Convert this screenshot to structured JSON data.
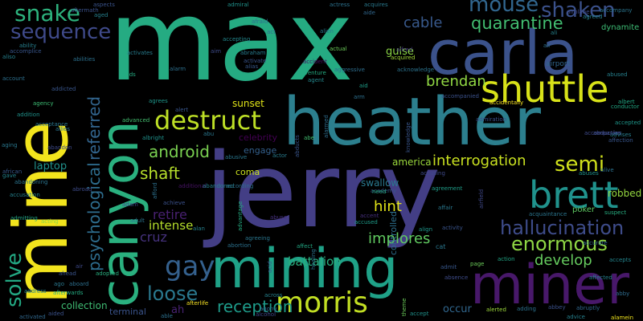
{
  "words": [
    {
      "text": "max",
      "color": "#25ab82"
    },
    {
      "text": "jerry",
      "color": "#433e85"
    },
    {
      "text": "heather",
      "color": "#2c7f8e"
    },
    {
      "text": "mine",
      "color": "#f2e41d"
    },
    {
      "text": "mining",
      "color": "#1fa187"
    },
    {
      "text": "carla",
      "color": "#3b528b"
    },
    {
      "text": "canyon",
      "color": "#2ab07f"
    },
    {
      "text": "miner",
      "color": "#48186a"
    },
    {
      "text": "shuttle",
      "color": "#d8e219"
    },
    {
      "text": "brett",
      "color": "#20928c"
    },
    {
      "text": "morris",
      "color": "#c2df23"
    },
    {
      "text": "destruct",
      "color": "#bddf26"
    },
    {
      "text": "psychological",
      "color": "#2e6d8e"
    },
    {
      "text": "referred",
      "color": "#32658e"
    },
    {
      "text": "snake",
      "color": "#2db27d"
    },
    {
      "text": "sequence",
      "color": "#3f4a8a"
    },
    {
      "text": "mouse",
      "color": "#31668e"
    },
    {
      "text": "shaken",
      "color": "#3b518b"
    },
    {
      "text": "quarantine",
      "color": "#42be71"
    },
    {
      "text": "cable",
      "color": "#38598c"
    },
    {
      "text": "hallucination",
      "color": "#3e4c8a"
    },
    {
      "text": "enormous",
      "color": "#8fd744"
    },
    {
      "text": "semi",
      "color": "#d0e11c"
    },
    {
      "text": "gay",
      "color": "#34608d"
    },
    {
      "text": "solve",
      "color": "#23a983"
    },
    {
      "text": "loose",
      "color": "#2a788e"
    },
    {
      "text": "android",
      "color": "#7ad151"
    },
    {
      "text": "shaft",
      "color": "#b5de2b"
    },
    {
      "text": "reception",
      "color": "#1e9b8a"
    },
    {
      "text": "develop",
      "color": "#65cb5e"
    },
    {
      "text": "brendan",
      "color": "#90d743"
    },
    {
      "text": "interrogation",
      "color": "#c8e020"
    },
    {
      "text": "implores",
      "color": "#60ca60"
    },
    {
      "text": "hint",
      "color": "#e2e418"
    },
    {
      "text": "battalion",
      "color": "#29af7f"
    },
    {
      "text": "retire",
      "color": "#482071"
    },
    {
      "text": "intense",
      "color": "#b5de2b"
    },
    {
      "text": "cruz",
      "color": "#46327e"
    },
    {
      "text": "laptop",
      "color": "#21918c"
    },
    {
      "text": "collection",
      "color": "#3fbc73"
    },
    {
      "text": "guise",
      "color": "#8bd646"
    },
    {
      "text": "occur",
      "color": "#31678e"
    },
    {
      "text": "sunset",
      "color": "#dfe318"
    },
    {
      "text": "robbed",
      "color": "#95d840"
    },
    {
      "text": "america",
      "color": "#9bd93c"
    },
    {
      "text": "swallow",
      "color": "#2a788e"
    },
    {
      "text": "engage",
      "color": "#34608d"
    },
    {
      "text": "coma",
      "color": "#cae11f"
    },
    {
      "text": "controlled",
      "color": "#2e6f8e"
    },
    {
      "text": "ah",
      "color": "#482374"
    },
    {
      "text": "terminal",
      "color": "#3a538b"
    },
    {
      "text": "poker",
      "color": "#5ec962"
    },
    {
      "text": "celebrity",
      "color": "#440154"
    },
    {
      "text": "dynamite",
      "color": "#3dbc74"
    },
    {
      "text": "conductor",
      "color": "#22a884"
    },
    {
      "text": "airport",
      "color": "#31678e"
    },
    {
      "text": "abuse",
      "color": "#46307e"
    },
    {
      "text": "accused",
      "color": "#1e9c89"
    },
    {
      "text": "activity",
      "color": "#3a548c"
    },
    {
      "text": "alamein",
      "color": "#f1e51d"
    },
    {
      "text": "abby",
      "color": "#2f6c8e"
    },
    {
      "text": "admit",
      "color": "#38588c"
    },
    {
      "text": "accepts",
      "color": "#24868e"
    },
    {
      "text": "action",
      "color": "#21a585"
    },
    {
      "text": "alerted",
      "color": "#9dd93b"
    },
    {
      "text": "abbey",
      "color": "#3b518b"
    },
    {
      "text": "abruptly",
      "color": "#31688e"
    },
    {
      "text": "advice",
      "color": "#26818e"
    },
    {
      "text": "adding",
      "color": "#2c718e"
    },
    {
      "text": "page",
      "color": "#6ccd5a"
    },
    {
      "text": "suspect",
      "color": "#28ae80"
    },
    {
      "text": "acquaintance",
      "color": "#2b758e"
    },
    {
      "text": "accompanies",
      "color": "#3e4989"
    },
    {
      "text": "accepted",
      "color": "#1f978b"
    },
    {
      "text": "affection",
      "color": "#39568c"
    },
    {
      "text": "advises",
      "color": "#277f8e"
    },
    {
      "text": "abduction",
      "color": "#3d4e8a"
    },
    {
      "text": "aboard",
      "color": "#2d708e"
    },
    {
      "text": "address",
      "color": "#25848e"
    },
    {
      "text": "afterwards",
      "color": "#25ac82"
    },
    {
      "text": "acting",
      "color": "#8ed645"
    },
    {
      "text": "admitting",
      "color": "#20a386"
    },
    {
      "text": "abandoning",
      "color": "#2b748e"
    },
    {
      "text": "abandon",
      "color": "#3e4a89"
    },
    {
      "text": "advanced",
      "color": "#44bf70"
    },
    {
      "text": "albright",
      "color": "#20928c"
    },
    {
      "text": "additional",
      "color": "#471365"
    },
    {
      "text": "abandoned",
      "color": "#26828e"
    },
    {
      "text": "according",
      "color": "#2d718e"
    },
    {
      "text": "abusive",
      "color": "#2a778e"
    },
    {
      "text": "academy",
      "color": "#39568c"
    },
    {
      "text": "agreement",
      "color": "#1f9e89"
    },
    {
      "text": "acquired",
      "color": "#a2da37"
    },
    {
      "text": "activate",
      "color": "#3a548c"
    },
    {
      "text": "accident",
      "color": "#471164"
    },
    {
      "text": "aggressive",
      "color": "#2e6e8e"
    },
    {
      "text": "adventure",
      "color": "#25ac82"
    },
    {
      "text": "acknowledge",
      "color": "#2c738e"
    },
    {
      "text": "accompanied",
      "color": "#3b518b"
    },
    {
      "text": "adopted",
      "color": "#29af7f"
    },
    {
      "text": "afterlife",
      "color": "#fde725"
    },
    {
      "text": "agony",
      "color": "#31678e"
    },
    {
      "text": "alcohol",
      "color": "#3f4889"
    },
    {
      "text": "agreeing",
      "color": "#2a768e"
    },
    {
      "text": "abortion",
      "color": "#2c718e"
    },
    {
      "text": "affect",
      "color": "#22a884"
    },
    {
      "text": "accent",
      "color": "#46307e"
    },
    {
      "text": "accepting",
      "color": "#23898e"
    },
    {
      "text": "aspects",
      "color": "#3a548c"
    },
    {
      "text": "accomplice",
      "color": "#39568c"
    },
    {
      "text": "ability",
      "color": "#277f8e"
    },
    {
      "text": "aftermath",
      "color": "#3b528b"
    },
    {
      "text": "aged",
      "color": "#26818e"
    },
    {
      "text": "actress",
      "color": "#2c718e"
    },
    {
      "text": "admiral",
      "color": "#20928c"
    },
    {
      "text": "airplane",
      "color": "#3e4a89"
    },
    {
      "text": "accompany",
      "color": "#2b758e"
    },
    {
      "text": "agreed",
      "color": "#26828e"
    },
    {
      "text": "alfred",
      "color": "#453781"
    },
    {
      "text": "acquires",
      "color": "#29798e"
    },
    {
      "text": "alert",
      "color": "#39568c"
    },
    {
      "text": "albert",
      "color": "#22a884"
    },
    {
      "text": "account",
      "color": "#2d708e"
    },
    {
      "text": "agency",
      "color": "#3dbc74"
    },
    {
      "text": "agrees",
      "color": "#1f978b"
    },
    {
      "text": "aging",
      "color": "#2a778e"
    },
    {
      "text": "african",
      "color": "#38588c"
    },
    {
      "text": "gave",
      "color": "#25848e"
    },
    {
      "text": "alarm",
      "color": "#2d708e"
    },
    {
      "text": "aim",
      "color": "#3e4c8a"
    },
    {
      "text": "actual",
      "color": "#6ccd5a"
    },
    {
      "text": "act",
      "color": "#31688e"
    },
    {
      "text": "afraid",
      "color": "#2f6c8e"
    },
    {
      "text": "alias",
      "color": "#38598c"
    },
    {
      "text": "agent",
      "color": "#23898e"
    },
    {
      "text": "aid",
      "color": "#1f9e89"
    },
    {
      "text": "abe",
      "color": "#42be71"
    },
    {
      "text": "abu",
      "color": "#2a778e"
    },
    {
      "text": "actor",
      "color": "#287c8e"
    },
    {
      "text": "adam",
      "color": "#3e4989"
    },
    {
      "text": "adult",
      "color": "#2b748e"
    },
    {
      "text": "alan",
      "color": "#26818e"
    },
    {
      "text": "achieve",
      "color": "#3b518b"
    },
    {
      "text": "afford",
      "color": "#2d708e"
    },
    {
      "text": "need",
      "color": "#25ac82"
    },
    {
      "text": "align",
      "color": "#1f978b"
    },
    {
      "text": "cat",
      "color": "#2a778e"
    },
    {
      "text": "absence",
      "color": "#3e4c8a"
    },
    {
      "text": "healing",
      "color": "#2b758e"
    },
    {
      "text": "theme",
      "color": "#6ccd5a"
    },
    {
      "text": "accept",
      "color": "#20928c"
    },
    {
      "text": "across",
      "color": "#26828e"
    },
    {
      "text": "acid",
      "color": "#3a548c"
    },
    {
      "text": "aide",
      "color": "#31678e"
    },
    {
      "text": "alien",
      "color": "#29798e"
    },
    {
      "text": "abducts",
      "color": "#39568c"
    },
    {
      "text": "alarmed",
      "color": "#2e6e8e"
    },
    {
      "text": "advantage",
      "color": "#25ac82"
    },
    {
      "text": "airfield",
      "color": "#3f4889"
    },
    {
      "text": "accidentally",
      "color": "#fde725"
    },
    {
      "text": "alive",
      "color": "#2c718e"
    },
    {
      "text": "aliso",
      "color": "#26818e"
    },
    {
      "text": "ago",
      "color": "#2a788e"
    },
    {
      "text": "ali",
      "color": "#26828e"
    },
    {
      "text": "able",
      "color": "#2c718e"
    },
    {
      "text": "aided",
      "color": "#3b528b"
    },
    {
      "text": "activated",
      "color": "#31688e"
    },
    {
      "text": "abraham",
      "color": "#287c8e"
    },
    {
      "text": "accusing",
      "color": "#3e4a89"
    },
    {
      "text": "abuses",
      "color": "#20928c"
    },
    {
      "text": "allies",
      "color": "#2b758e"
    },
    {
      "text": "addicted",
      "color": "#39568c"
    },
    {
      "text": "abused",
      "color": "#26818e"
    },
    {
      "text": "air",
      "color": "#2d708e"
    },
    {
      "text": "abroad",
      "color": "#3e4c8a"
    },
    {
      "text": "adds",
      "color": "#25ac82"
    },
    {
      "text": "acceptance",
      "color": "#2a778e"
    },
    {
      "text": "accusation",
      "color": "#26828e"
    },
    {
      "text": "ahead",
      "color": "#3a548c"
    },
    {
      "text": "addition",
      "color": "#20928c"
    },
    {
      "text": "activates",
      "color": "#287c8e"
    },
    {
      "text": "abilities",
      "color": "#2c718e"
    },
    {
      "text": "affected",
      "color": "#26818e"
    },
    {
      "text": "accurate",
      "color": "#31678e"
    },
    {
      "text": "affair",
      "color": "#2a788e"
    },
    {
      "text": "air",
      "color": "#3e4989"
    },
    {
      "text": "arm",
      "color": "#2d708e"
    },
    {
      "text": "admiration",
      "color": "#3b518b"
    },
    {
      "text": "knowledge",
      "color": "#39568c"
    }
  ]
}
